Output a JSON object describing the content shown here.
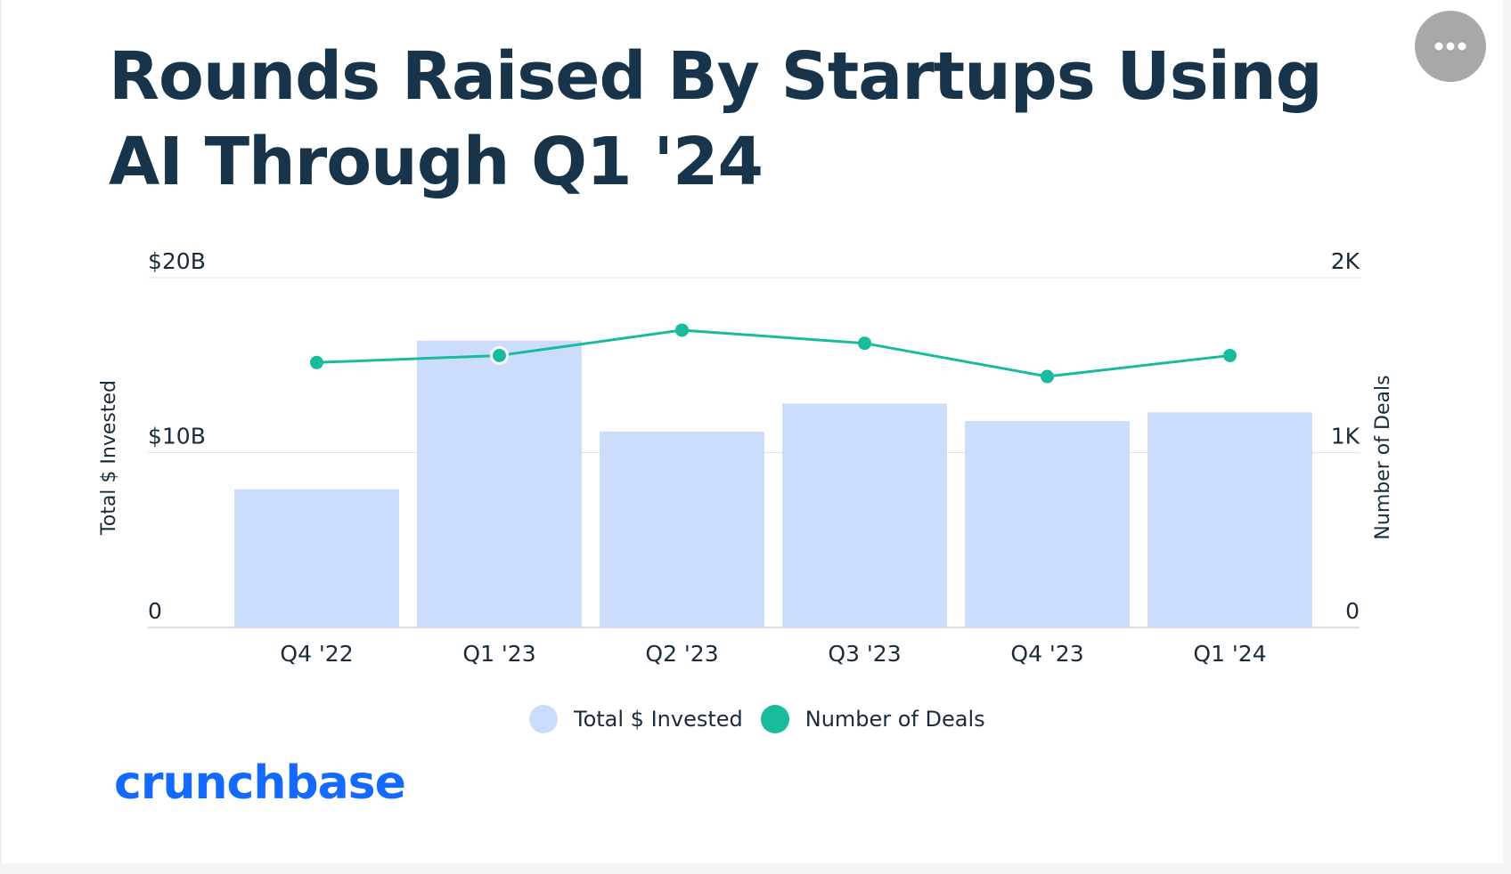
{
  "page": {
    "title": "Rounds Raised By Startups Using AI Through Q1 '24",
    "brand": "crunchbase"
  },
  "colors": {
    "title": "#17344a",
    "bar": "#ccddfb",
    "line": "#18bc9c",
    "grid": "#dfe3e8",
    "brand": "#146aff",
    "menu_button": "#a8a8a8"
  },
  "icons": {
    "menu": "more-horizontal-icon"
  },
  "legend": [
    {
      "label": "Total $ Invested",
      "color": "#ccddfb"
    },
    {
      "label": "Number of Deals",
      "color": "#18bc9c"
    }
  ],
  "chart_data": {
    "type": "bar",
    "title": "Rounds Raised By Startups Using AI Through Q1 '24",
    "categories": [
      "Q4 '22",
      "Q1 '23",
      "Q2 '23",
      "Q3 '23",
      "Q4 '23",
      "Q1 '24"
    ],
    "series": [
      {
        "name": "Total $ Invested",
        "type": "bar",
        "axis": "left",
        "values": [
          7.9,
          16.4,
          11.2,
          12.8,
          11.8,
          12.3
        ]
      },
      {
        "name": "Number of Deals",
        "type": "line",
        "axis": "right",
        "values": [
          1515,
          1555,
          1700,
          1625,
          1435,
          1555
        ]
      }
    ],
    "y_left": {
      "label": "Total $ Invested",
      "range": [
        0,
        20
      ],
      "ticks": [
        0,
        10,
        20
      ],
      "tick_labels": [
        "0",
        "$10B",
        "$20B"
      ]
    },
    "y_right": {
      "label": "Number of Deals",
      "range": [
        0,
        2000
      ],
      "ticks": [
        0,
        1000,
        2000
      ],
      "tick_labels": [
        "0",
        "1K",
        "2K"
      ]
    },
    "xlabel": "",
    "grid": true,
    "legend_position": "bottom-center",
    "highlighted_point": {
      "series": "Number of Deals",
      "category": "Q1 '23"
    }
  }
}
